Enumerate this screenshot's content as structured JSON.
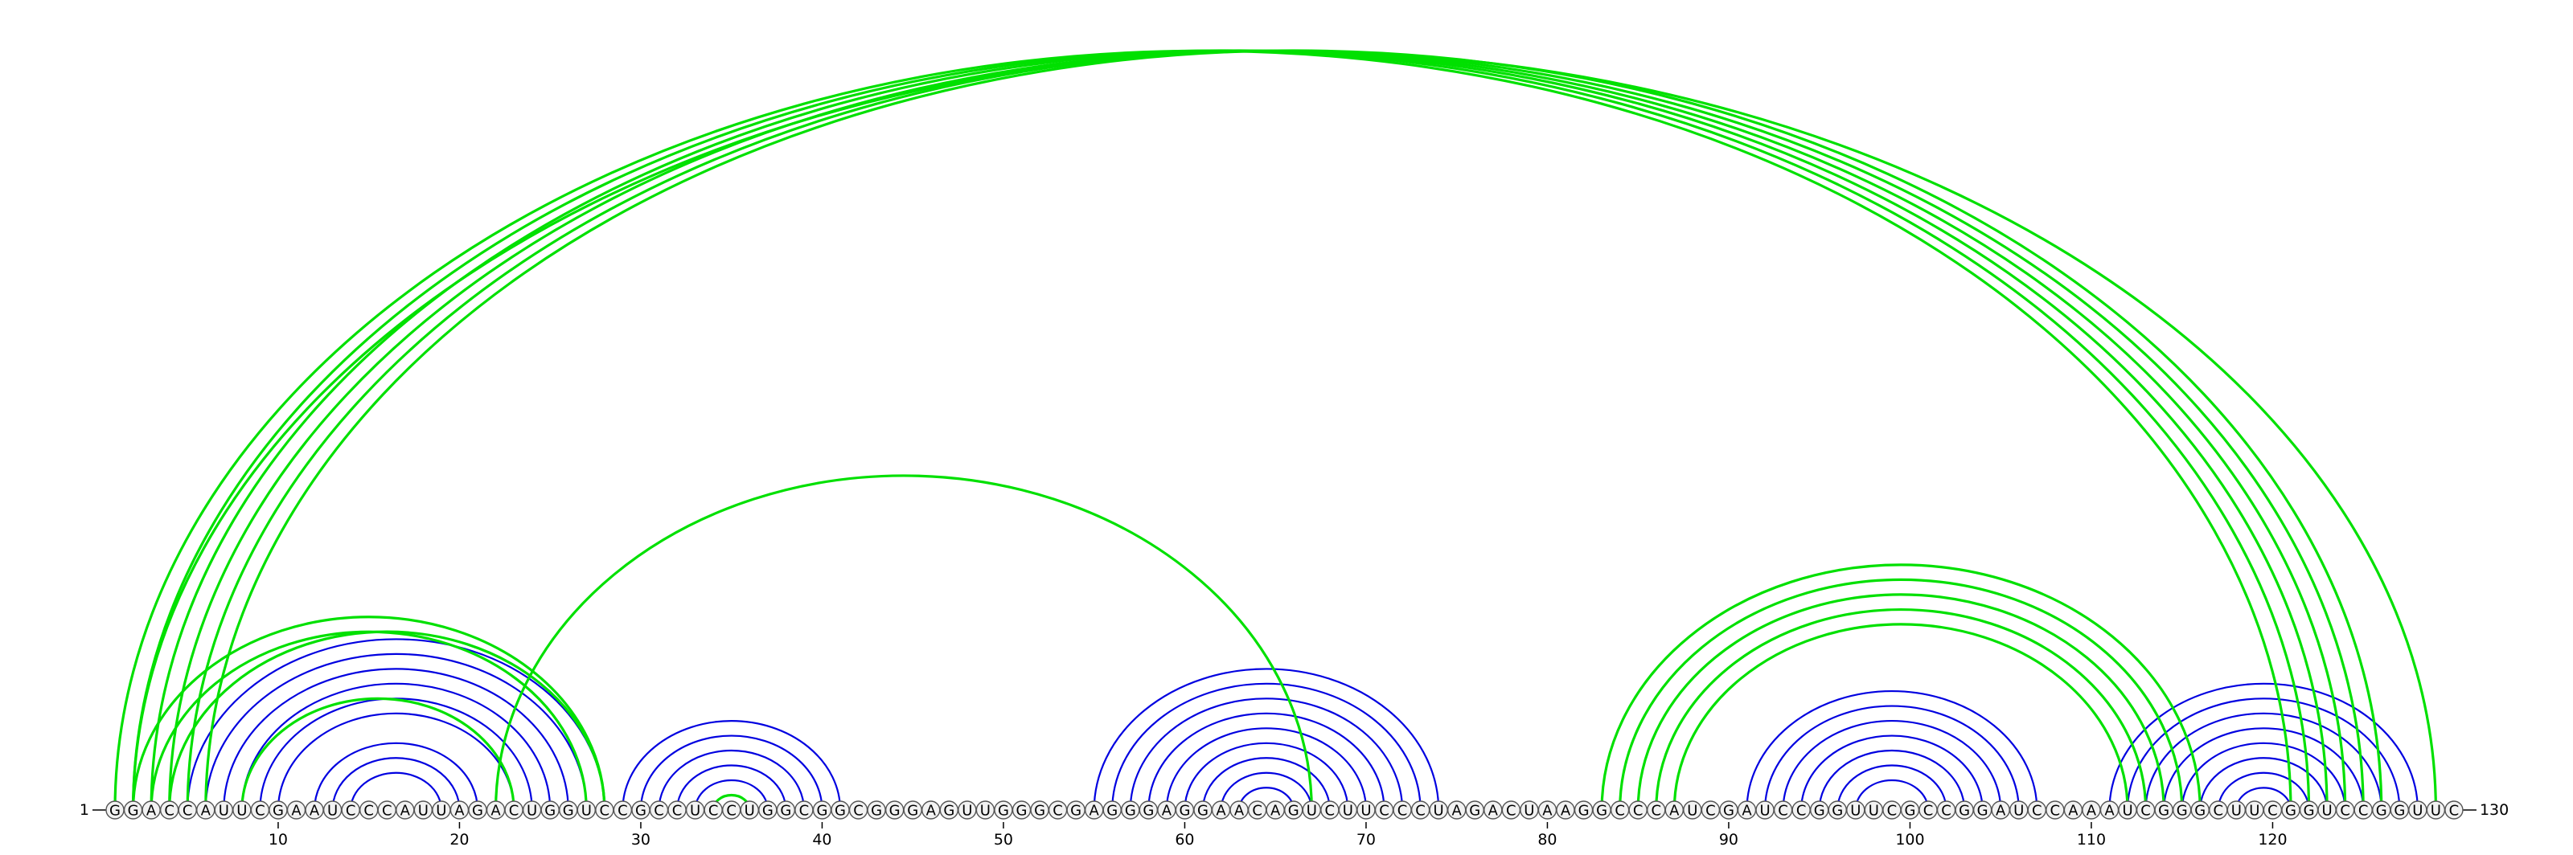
{
  "diagram": {
    "sequence": "GGACCAUUCGAAUCCCAUUAGACUGGUCCGCCUCCUGGCGGCGGGAGUUGGGCGAGGGAGGAACAGUCUUCCCUAGACUAAGGCCCAUCGAUCCGGUUCGCCGGAUCCAAAUCGGGCUUCGGUCCGGUUC",
    "start_label": "1",
    "end_label": "130",
    "ticks": [
      10,
      20,
      30,
      40,
      50,
      60,
      70,
      80,
      90,
      100,
      110,
      120
    ],
    "colors": {
      "arc_blue": "#0000e0",
      "arc_green": "#00e000",
      "nucleotide_stroke": "#555555",
      "nucleotide_fill": "#f2f2f2",
      "text": "#000000"
    },
    "arcs": [
      {
        "i": 5,
        "j": 28,
        "color": "blue"
      },
      {
        "i": 6,
        "j": 27,
        "color": "blue"
      },
      {
        "i": 7,
        "j": 26,
        "color": "blue"
      },
      {
        "i": 8,
        "j": 25,
        "color": "blue"
      },
      {
        "i": 9,
        "j": 24,
        "color": "blue"
      },
      {
        "i": 10,
        "j": 23,
        "color": "blue"
      },
      {
        "i": 12,
        "j": 21,
        "color": "blue"
      },
      {
        "i": 13,
        "j": 20,
        "color": "blue"
      },
      {
        "i": 14,
        "j": 19,
        "color": "blue"
      },
      {
        "i": 29,
        "j": 41,
        "color": "blue"
      },
      {
        "i": 30,
        "j": 40,
        "color": "blue"
      },
      {
        "i": 31,
        "j": 39,
        "color": "blue"
      },
      {
        "i": 32,
        "j": 38,
        "color": "blue"
      },
      {
        "i": 33,
        "j": 37,
        "color": "blue"
      },
      {
        "i": 55,
        "j": 74,
        "color": "blue"
      },
      {
        "i": 56,
        "j": 73,
        "color": "blue"
      },
      {
        "i": 57,
        "j": 72,
        "color": "blue"
      },
      {
        "i": 58,
        "j": 71,
        "color": "blue"
      },
      {
        "i": 59,
        "j": 70,
        "color": "blue"
      },
      {
        "i": 60,
        "j": 69,
        "color": "blue"
      },
      {
        "i": 61,
        "j": 68,
        "color": "blue"
      },
      {
        "i": 62,
        "j": 67,
        "color": "blue"
      },
      {
        "i": 63,
        "j": 66,
        "color": "blue"
      },
      {
        "i": 91,
        "j": 107,
        "color": "blue"
      },
      {
        "i": 92,
        "j": 106,
        "color": "blue"
      },
      {
        "i": 93,
        "j": 105,
        "color": "blue"
      },
      {
        "i": 94,
        "j": 104,
        "color": "blue"
      },
      {
        "i": 95,
        "j": 103,
        "color": "blue"
      },
      {
        "i": 96,
        "j": 102,
        "color": "blue"
      },
      {
        "i": 97,
        "j": 101,
        "color": "blue"
      },
      {
        "i": 111,
        "j": 128,
        "color": "blue"
      },
      {
        "i": 112,
        "j": 127,
        "color": "blue"
      },
      {
        "i": 113,
        "j": 126,
        "color": "blue"
      },
      {
        "i": 114,
        "j": 125,
        "color": "blue"
      },
      {
        "i": 115,
        "j": 124,
        "color": "blue"
      },
      {
        "i": 116,
        "j": 123,
        "color": "blue"
      },
      {
        "i": 117,
        "j": 122,
        "color": "blue"
      },
      {
        "i": 118,
        "j": 121,
        "color": "blue"
      },
      {
        "i": 1,
        "j": 121,
        "color": "green"
      },
      {
        "i": 2,
        "j": 122,
        "color": "green"
      },
      {
        "i": 3,
        "j": 123,
        "color": "green"
      },
      {
        "i": 4,
        "j": 124,
        "color": "green"
      },
      {
        "i": 5,
        "j": 125,
        "color": "green"
      },
      {
        "i": 6,
        "j": 126,
        "color": "green"
      },
      {
        "i": 2,
        "j": 129,
        "color": "green"
      },
      {
        "i": 2,
        "j": 28,
        "color": "green"
      },
      {
        "i": 3,
        "j": 27,
        "color": "green"
      },
      {
        "i": 4,
        "j": 28,
        "color": "green"
      },
      {
        "i": 8,
        "j": 23,
        "color": "green"
      },
      {
        "i": 34,
        "j": 36,
        "color": "green"
      },
      {
        "i": 22,
        "j": 67,
        "color": "green"
      },
      {
        "i": 83,
        "j": 116,
        "color": "green"
      },
      {
        "i": 84,
        "j": 115,
        "color": "green"
      },
      {
        "i": 85,
        "j": 114,
        "color": "green"
      },
      {
        "i": 86,
        "j": 113,
        "color": "green"
      },
      {
        "i": 87,
        "j": 112,
        "color": "green"
      }
    ]
  }
}
